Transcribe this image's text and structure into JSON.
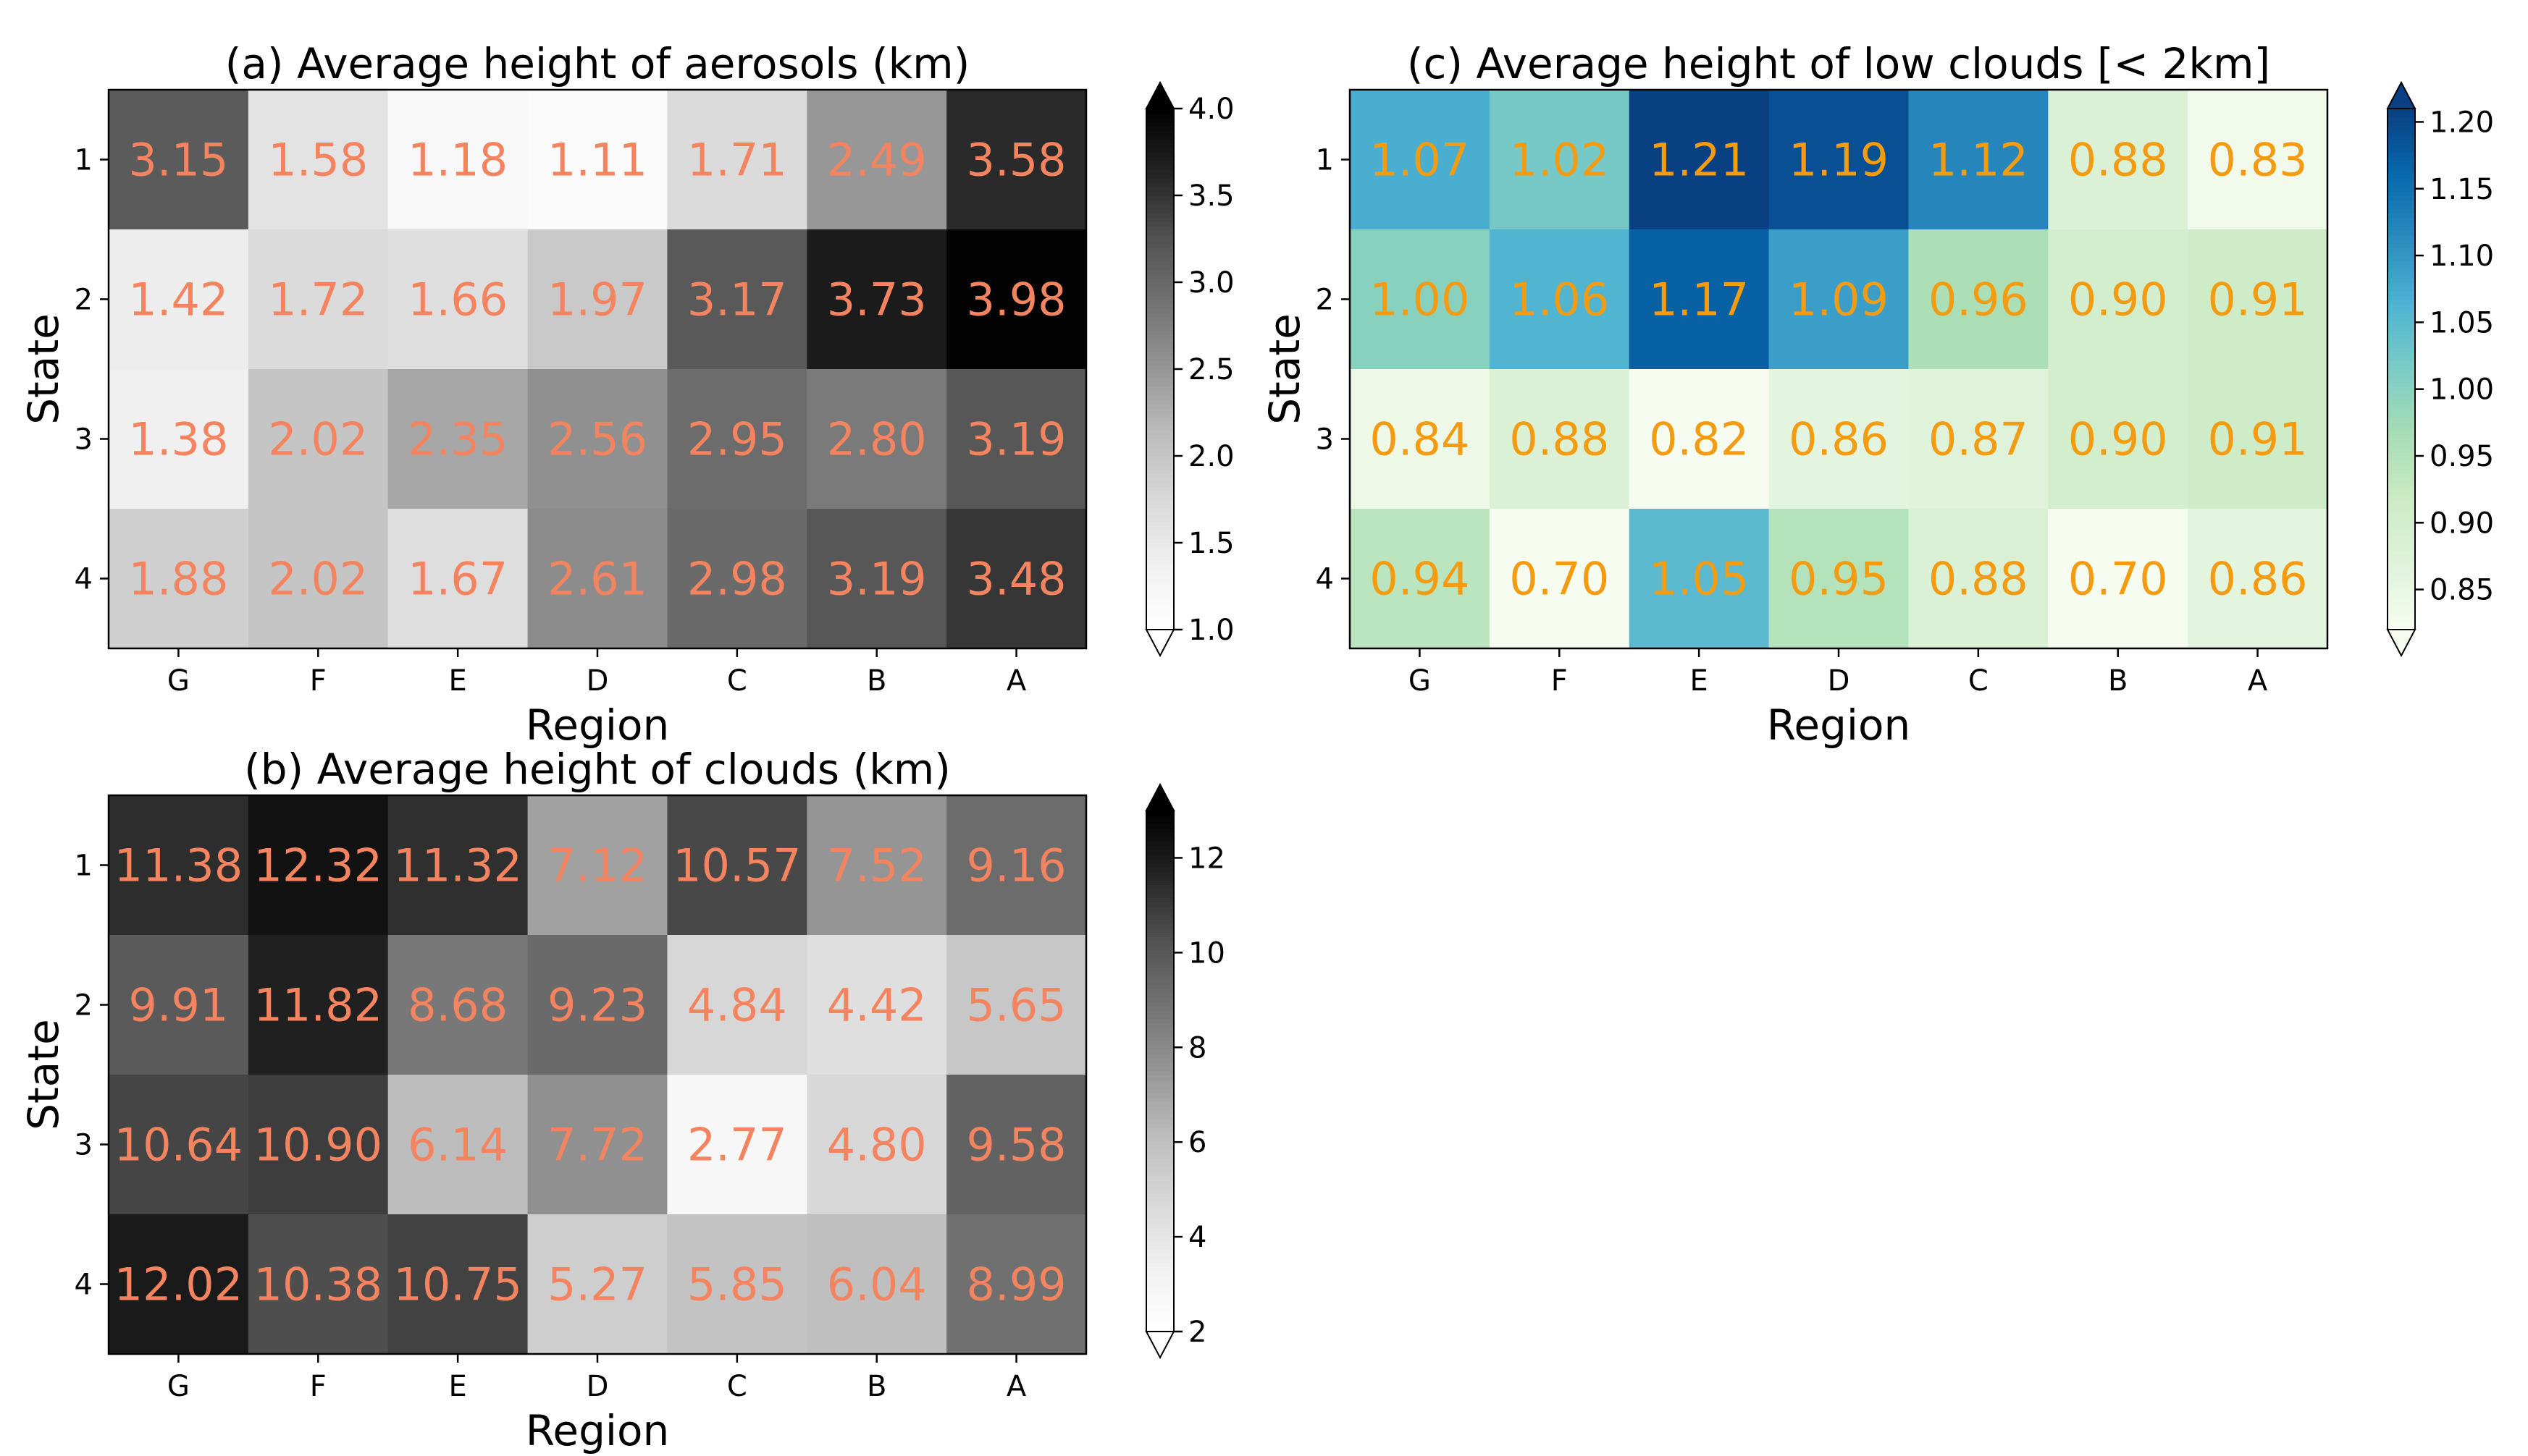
{
  "chart_data": [
    {
      "id": "a",
      "type": "heatmap",
      "title": "(a) Average height of aerosols (km)",
      "xlabel": "Region",
      "ylabel": "State",
      "columns": [
        "G",
        "F",
        "E",
        "D",
        "C",
        "B",
        "A"
      ],
      "rows": [
        "1",
        "2",
        "3",
        "4"
      ],
      "values": [
        [
          3.15,
          1.58,
          1.18,
          1.11,
          1.71,
          2.49,
          3.58
        ],
        [
          1.42,
          1.72,
          1.66,
          1.97,
          3.17,
          3.73,
          3.98
        ],
        [
          1.38,
          2.02,
          2.35,
          2.56,
          2.95,
          2.8,
          3.19
        ],
        [
          1.88,
          2.02,
          1.67,
          2.61,
          2.98,
          3.19,
          3.48
        ]
      ],
      "labels": [
        [
          "3.15",
          "1.58",
          "1.18",
          "1.11",
          "1.71",
          "2.49",
          "3.58"
        ],
        [
          "1.42",
          "1.72",
          "1.66",
          "1.97",
          "3.17",
          "3.73",
          "3.98"
        ],
        [
          "1.38",
          "2.02",
          "2.35",
          "2.56",
          "2.95",
          "2.80",
          "3.19"
        ],
        [
          "1.88",
          "2.02",
          "1.67",
          "2.61",
          "2.98",
          "3.19",
          "3.48"
        ]
      ],
      "colormap": "Greys",
      "vmin": 1.0,
      "vmax": 4.0,
      "colorbar_ticks": [
        "1.0",
        "1.5",
        "2.0",
        "2.5",
        "3.0",
        "3.5",
        "4.0"
      ],
      "colorbar_extend": "both",
      "annotation_color": "#f4845f"
    },
    {
      "id": "b",
      "type": "heatmap",
      "title": "(b) Average height of clouds (km)",
      "xlabel": "Region",
      "ylabel": "State",
      "columns": [
        "G",
        "F",
        "E",
        "D",
        "C",
        "B",
        "A"
      ],
      "rows": [
        "1",
        "2",
        "3",
        "4"
      ],
      "values": [
        [
          11.38,
          12.32,
          11.32,
          7.12,
          10.57,
          7.52,
          9.16
        ],
        [
          9.91,
          11.82,
          8.68,
          9.23,
          4.84,
          4.42,
          5.65
        ],
        [
          10.64,
          10.9,
          6.14,
          7.72,
          2.77,
          4.8,
          9.58
        ],
        [
          12.02,
          10.38,
          10.75,
          5.27,
          5.85,
          6.04,
          8.99
        ]
      ],
      "labels": [
        [
          "11.38",
          "12.32",
          "11.32",
          "7.12",
          "10.57",
          "7.52",
          "9.16"
        ],
        [
          "9.91",
          "11.82",
          "8.68",
          "9.23",
          "4.84",
          "4.42",
          "5.65"
        ],
        [
          "10.64",
          "10.90",
          "6.14",
          "7.72",
          "2.77",
          "4.80",
          "9.58"
        ],
        [
          "12.02",
          "10.38",
          "10.75",
          "5.27",
          "5.85",
          "6.04",
          "8.99"
        ]
      ],
      "colormap": "Greys",
      "vmin": 2,
      "vmax": 13,
      "colorbar_ticks": [
        "2",
        "4",
        "6",
        "8",
        "10",
        "12"
      ],
      "colorbar_extend": "both",
      "annotation_color": "#f4845f"
    },
    {
      "id": "c",
      "type": "heatmap",
      "title": "(c) Average height of low clouds [< 2km]",
      "xlabel": "Region",
      "ylabel": "State",
      "columns": [
        "G",
        "F",
        "E",
        "D",
        "C",
        "B",
        "A"
      ],
      "rows": [
        "1",
        "2",
        "3",
        "4"
      ],
      "values": [
        [
          1.07,
          1.02,
          1.21,
          1.19,
          1.12,
          0.88,
          0.83
        ],
        [
          1.0,
          1.06,
          1.17,
          1.09,
          0.96,
          0.9,
          0.91
        ],
        [
          0.84,
          0.88,
          0.82,
          0.86,
          0.87,
          0.9,
          0.91
        ],
        [
          0.94,
          0.7,
          1.05,
          0.95,
          0.88,
          0.7,
          0.86
        ]
      ],
      "labels": [
        [
          "1.07",
          "1.02",
          "1.21",
          "1.19",
          "1.12",
          "0.88",
          "0.83"
        ],
        [
          "1.00",
          "1.06",
          "1.17",
          "1.09",
          "0.96",
          "0.90",
          "0.91"
        ],
        [
          "0.84",
          "0.88",
          "0.82",
          "0.86",
          "0.87",
          "0.90",
          "0.91"
        ],
        [
          "0.94",
          "0.70",
          "1.05",
          "0.95",
          "0.88",
          "0.70",
          "0.86"
        ]
      ],
      "colormap": "GnBu",
      "vmin": 0.82,
      "vmax": 1.21,
      "colorbar_ticks": [
        "0.85",
        "0.90",
        "0.95",
        "1.00",
        "1.05",
        "1.10",
        "1.15",
        "1.20"
      ],
      "colorbar_extend": "both",
      "annotation_color": "#f39c12"
    }
  ]
}
